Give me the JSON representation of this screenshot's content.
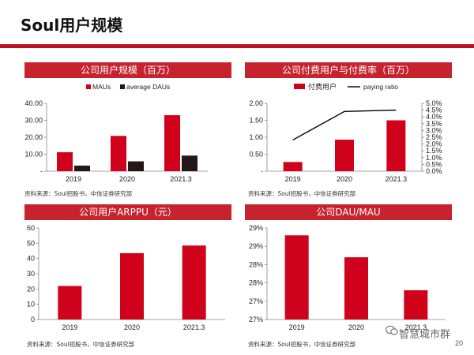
{
  "slide_title": "Soul用户规模",
  "page_number": "20",
  "watermark": "智慧城市群",
  "colors": {
    "accent": "#c6232f",
    "bar_red": "#d0021b",
    "bar_dark": "#231815",
    "line": "#000000"
  },
  "sources": [
    "资料来源：Soul招股书，中信证券研究部",
    "资料来源：Soul招股书，中信证券研究部",
    "资料来源：Soul招股书，中信证券研究部",
    "资料来源：Soul招股书，中信证券研究部"
  ],
  "chart_data": [
    {
      "id": "users",
      "type": "bar",
      "title": "公司用户规模（百万）",
      "categories": [
        "2019",
        "2020",
        "2021.3"
      ],
      "series": [
        {
          "name": "MAUs",
          "values": [
            11.2,
            20.8,
            33.0
          ]
        },
        {
          "name": "average DAUs",
          "values": [
            3.3,
            5.8,
            9.2
          ]
        }
      ],
      "ylim": [
        0,
        40
      ],
      "yticks": [
        "-",
        "10.00",
        "20.00",
        "30.00",
        "40.00"
      ],
      "legend": "top"
    },
    {
      "id": "paying",
      "type": "bar",
      "title": "公司付费用户与付费率（百万）",
      "categories": [
        "2019",
        "2020",
        "2021.3"
      ],
      "series": [
        {
          "name": "付费用户",
          "values": [
            0.27,
            0.93,
            1.5
          ]
        },
        {
          "name": "paying ratio",
          "values": [
            2.3,
            4.4,
            4.5
          ]
        }
      ],
      "ylim": [
        0,
        2
      ],
      "yticks": [
        "-",
        "0.50",
        "1.00",
        "1.50",
        "2.00"
      ],
      "y2lim": [
        0,
        5
      ],
      "y2ticks": [
        "0.0%",
        "0.5%",
        "1.0%",
        "1.5%",
        "2.0%",
        "2.5%",
        "3.0%",
        "3.5%",
        "4.0%",
        "4.5%",
        "5.0%"
      ],
      "legend": "top"
    },
    {
      "id": "arppu",
      "type": "bar",
      "title": "公司用户ARPPU（元）",
      "categories": [
        "2019",
        "2020",
        "2021.3"
      ],
      "series": [
        {
          "values": [
            22,
            43.5,
            48.5
          ]
        }
      ],
      "ylim": [
        0,
        60
      ],
      "yticks": [
        "0",
        "10",
        "20",
        "30",
        "40",
        "50",
        "60"
      ]
    },
    {
      "id": "daumau",
      "type": "bar",
      "title": "公司DAU/MAU",
      "categories": [
        "2019",
        "2020",
        "2021.3"
      ],
      "series": [
        {
          "values": [
            29.3,
            28.7,
            27.8
          ]
        }
      ],
      "ylim": [
        27,
        29.5
      ],
      "yticks": [
        "27%",
        "27%",
        "28%",
        "28%",
        "29%",
        "29%"
      ]
    }
  ]
}
